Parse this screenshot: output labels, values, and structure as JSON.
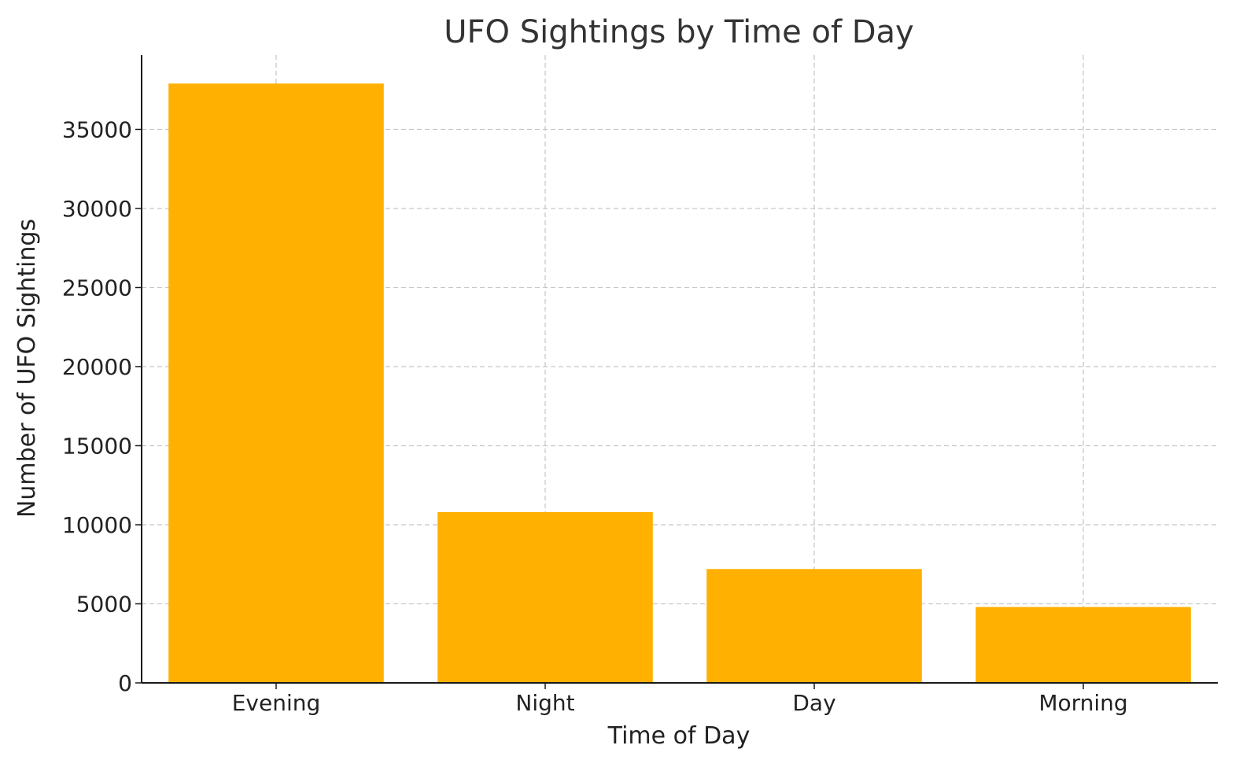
{
  "chart_data": {
    "type": "bar",
    "title": "UFO Sightings by Time of Day",
    "xlabel": "Time of Day",
    "ylabel": "Number of UFO Sightings",
    "categories": [
      "Evening",
      "Night",
      "Day",
      "Morning"
    ],
    "values": [
      37900,
      10800,
      7200,
      4800
    ],
    "ylim": [
      0,
      39700
    ],
    "yticks": [
      0,
      5000,
      10000,
      15000,
      20000,
      25000,
      30000,
      35000
    ],
    "grid": true,
    "bar_color": "#FFB000",
    "legend": "none"
  }
}
